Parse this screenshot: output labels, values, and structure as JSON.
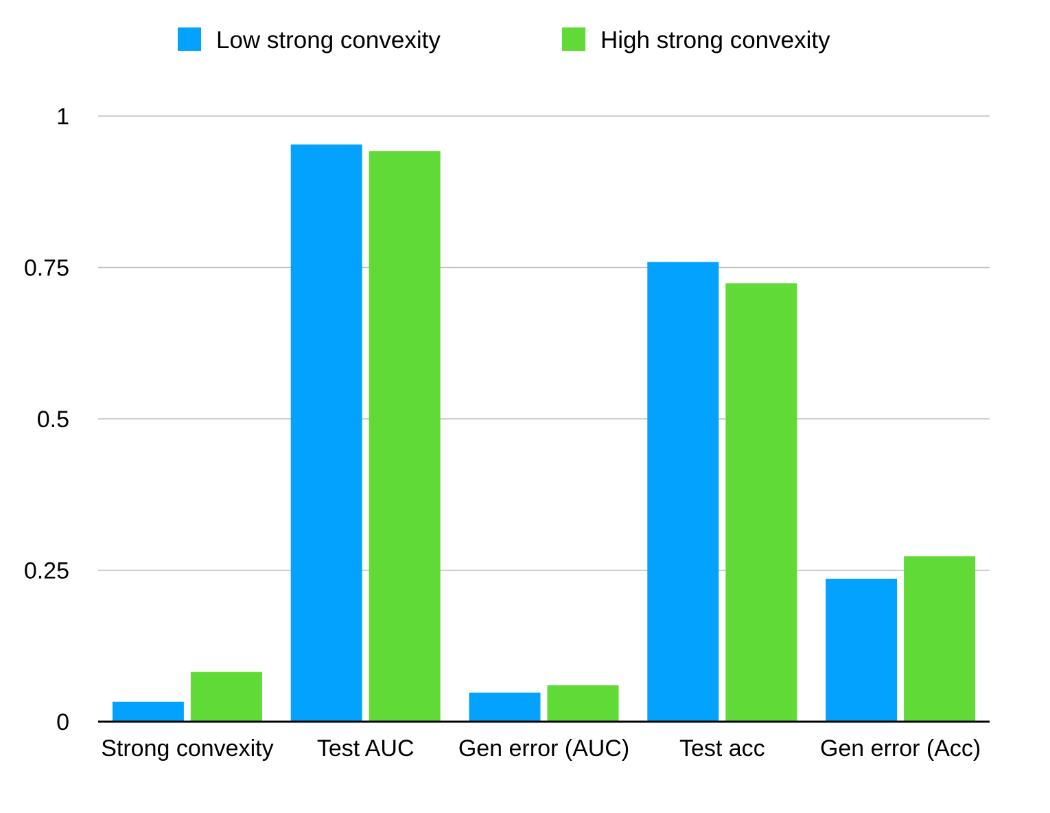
{
  "chart_data": {
    "type": "bar",
    "title": "",
    "xlabel": "",
    "ylabel": "",
    "categories": [
      "Strong convexity",
      "Test AUC",
      "Gen error (AUC)",
      "Test acc",
      "Gen error (Acc)"
    ],
    "series": [
      {
        "name": "Low strong convexity",
        "color": "#04A2FF",
        "values": [
          0.033,
          0.953,
          0.048,
          0.759,
          0.236
        ]
      },
      {
        "name": "High strong convexity",
        "color": "#5FDA36",
        "values": [
          0.082,
          0.942,
          0.06,
          0.724,
          0.273
        ]
      }
    ],
    "ylim": [
      0,
      1
    ],
    "yticks": [
      0,
      0.25,
      0.5,
      0.75,
      1
    ],
    "ytick_labels": [
      "0",
      "0.25",
      "0.5",
      "0.75",
      "1"
    ],
    "grid": true,
    "legend_position": "top-center"
  }
}
